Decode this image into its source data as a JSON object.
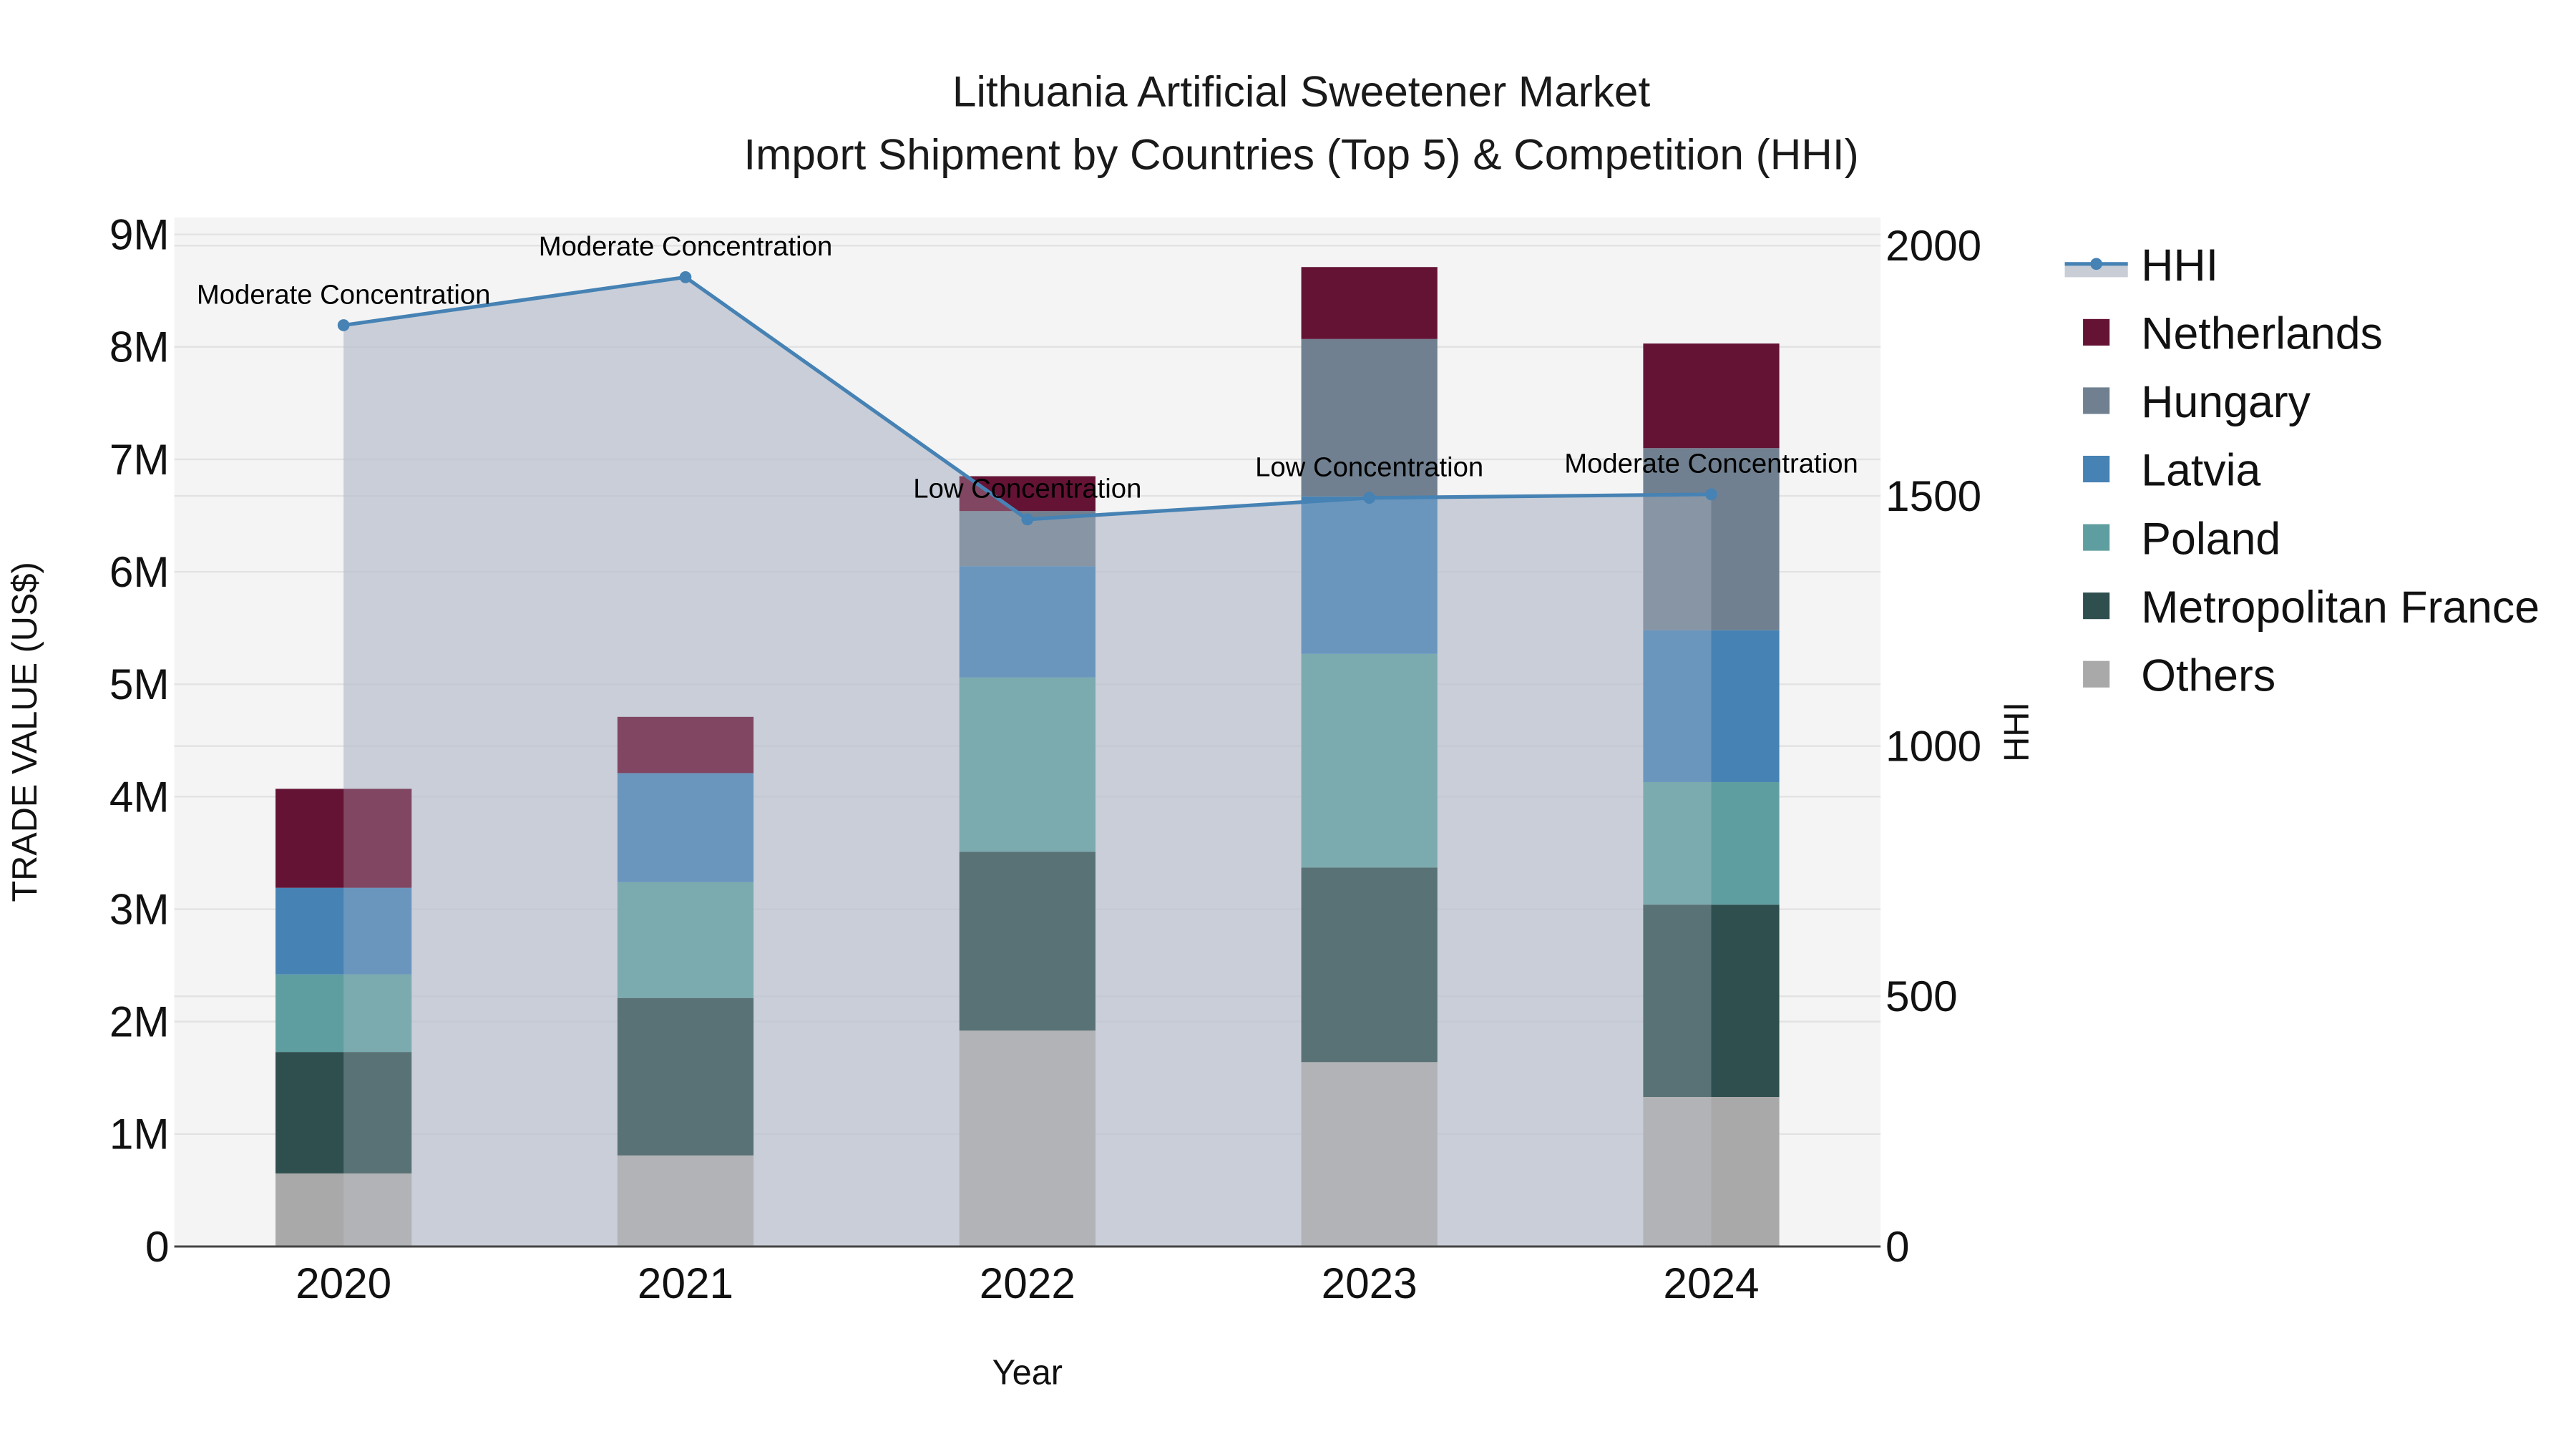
{
  "chart_data": {
    "type": "bar",
    "subtype": "stacked-bar-with-line",
    "title": "Lithuania Artificial Sweetener Market",
    "subtitle": "Import Shipment by Countries (Top 5) & Competition (HHI)",
    "xlabel": "Year",
    "ylabel": "TRADE VALUE (US$)",
    "y2label": "HHI",
    "categories": [
      "2020",
      "2021",
      "2022",
      "2023",
      "2024"
    ],
    "ylim": [
      0,
      9100000
    ],
    "y2lim": [
      0,
      2020
    ],
    "yticks": [
      0,
      1000000,
      2000000,
      3000000,
      4000000,
      5000000,
      6000000,
      7000000,
      8000000,
      9000000
    ],
    "ytick_labels": [
      "0",
      "1M",
      "2M",
      "3M",
      "4M",
      "5M",
      "6M",
      "7M",
      "8M",
      "9M"
    ],
    "y2ticks": [
      0,
      500,
      1000,
      1500,
      2000
    ],
    "y2tick_labels": [
      "0",
      "500",
      "1000",
      "1500",
      "2000"
    ],
    "grid": true,
    "legend_position": "right",
    "series": [
      {
        "name": "Others",
        "color": "#A9A9A9",
        "values": [
          650000,
          810000,
          1920000,
          1640000,
          1330000
        ]
      },
      {
        "name": "Metropolitan France",
        "color": "#2F4F4F",
        "values": [
          1080000,
          1400000,
          1590000,
          1730000,
          1710000
        ]
      },
      {
        "name": "Poland",
        "color": "#5F9EA0",
        "values": [
          690000,
          1030000,
          1550000,
          1900000,
          1090000
        ]
      },
      {
        "name": "Latvia",
        "color": "#4682B4",
        "values": [
          770000,
          970000,
          990000,
          1400000,
          1350000
        ]
      },
      {
        "name": "Hungary",
        "color": "#708090",
        "values": [
          0,
          0,
          490000,
          1400000,
          1620000
        ]
      },
      {
        "name": "Netherlands",
        "color": "#641335",
        "values": [
          880000,
          500000,
          310000,
          640000,
          930000
        ]
      }
    ],
    "line_series": {
      "name": "HHI",
      "color": "#4682B4",
      "fill": "rgba(176,184,198,0.62)",
      "axis": "y2",
      "values": [
        1841,
        1937,
        1453,
        1496,
        1503
      ],
      "annotations": [
        "Moderate Concentration",
        "Moderate Concentration",
        "Low Concentration",
        "Low Concentration",
        "Moderate Concentration"
      ]
    }
  },
  "legend": {
    "items": [
      {
        "label": "HHI",
        "kind": "line",
        "color": "#4682B4"
      },
      {
        "label": "Netherlands",
        "kind": "box",
        "color": "#641335"
      },
      {
        "label": "Hungary",
        "kind": "box",
        "color": "#708090"
      },
      {
        "label": "Latvia",
        "kind": "box",
        "color": "#4682B4"
      },
      {
        "label": "Poland",
        "kind": "box",
        "color": "#5F9EA0"
      },
      {
        "label": "Metropolitan France",
        "kind": "box",
        "color": "#2F4F4F"
      },
      {
        "label": "Others",
        "kind": "box",
        "color": "#A9A9A9"
      }
    ]
  },
  "colors": {
    "plot_bg": "#F4F4F4",
    "grid": "#E2E2E2",
    "axis_line": "#444444"
  }
}
